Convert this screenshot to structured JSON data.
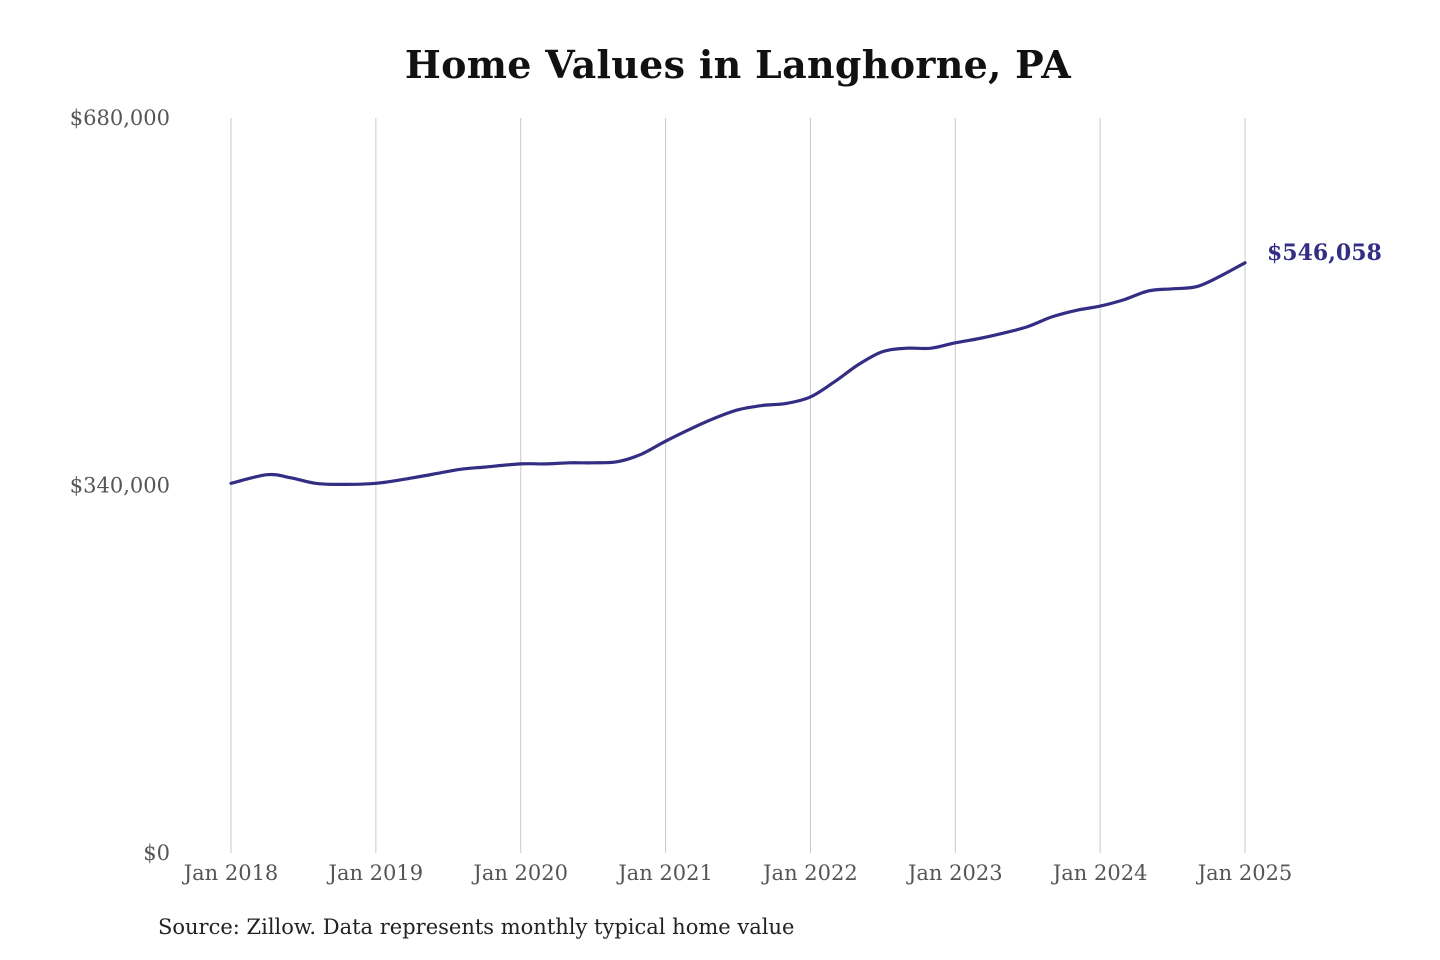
{
  "chart_data": {
    "type": "line",
    "title": "Home Values in Langhorne, PA",
    "source": "Source: Zillow. Data represents monthly typical home value",
    "ylim": [
      0,
      680000
    ],
    "y_ticks": [
      {
        "value": 0,
        "label": "$0"
      },
      {
        "value": 340000,
        "label": "$340,000"
      },
      {
        "value": 680000,
        "label": "$680,000"
      }
    ],
    "x_ticks": [
      {
        "date": "2018-01",
        "label": "Jan 2018"
      },
      {
        "date": "2019-01",
        "label": "Jan 2019"
      },
      {
        "date": "2020-01",
        "label": "Jan 2020"
      },
      {
        "date": "2021-01",
        "label": "Jan 2021"
      },
      {
        "date": "2022-01",
        "label": "Jan 2022"
      },
      {
        "date": "2023-01",
        "label": "Jan 2023"
      },
      {
        "date": "2024-01",
        "label": "Jan 2024"
      },
      {
        "date": "2025-01",
        "label": "Jan 2025"
      }
    ],
    "grid": {
      "vertical": true,
      "horizontal": false
    },
    "line_color": "#342d84",
    "end_label": "$546,058",
    "series": [
      {
        "x": [
          "2018-01",
          "2018-04",
          "2018-06",
          "2018-08",
          "2018-10",
          "2019-01",
          "2019-04",
          "2019-06",
          "2019-08",
          "2019-10",
          "2020-01",
          "2020-03",
          "2020-05",
          "2020-07",
          "2020-09",
          "2020-11",
          "2021-01",
          "2021-03",
          "2021-05",
          "2021-07",
          "2021-09",
          "2021-11",
          "2022-01",
          "2022-03",
          "2022-05",
          "2022-07",
          "2022-09",
          "2022-11",
          "2023-01",
          "2023-03",
          "2023-05",
          "2023-07",
          "2023-09",
          "2023-11",
          "2024-01",
          "2024-03",
          "2024-05",
          "2024-07",
          "2024-09",
          "2024-11",
          "2025-01"
        ],
        "values": [
          342000,
          350000,
          347000,
          342000,
          341000,
          342000,
          347000,
          351000,
          355000,
          357000,
          360000,
          360000,
          361000,
          361000,
          362000,
          369000,
          381000,
          392000,
          402000,
          410000,
          414000,
          416000,
          422000,
          436000,
          452000,
          464000,
          467000,
          467000,
          472000,
          476000,
          481000,
          487000,
          496000,
          502000,
          506000,
          512000,
          520000,
          522000,
          524000,
          534000,
          546058
        ]
      }
    ]
  }
}
